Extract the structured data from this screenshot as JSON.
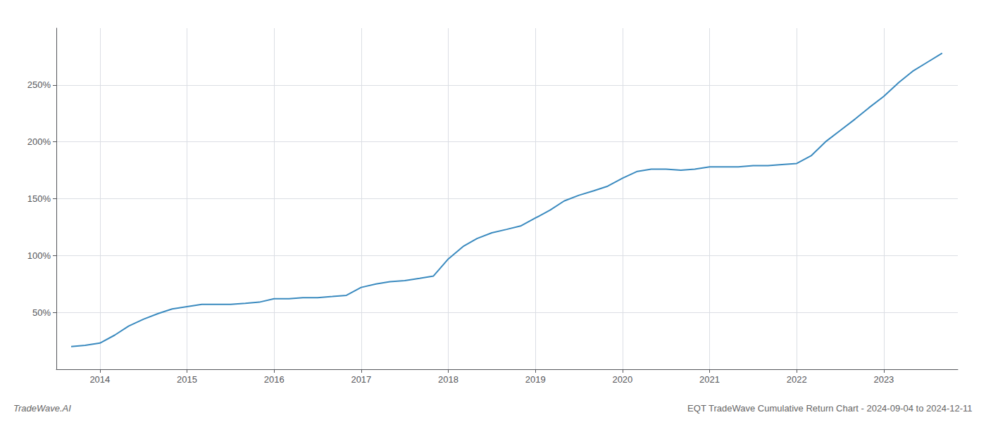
{
  "chart_data": {
    "type": "line",
    "title": "EQT TradeWave Cumulative Return Chart - 2024-09-04 to 2024-12-11",
    "annotations": [
      "TradeWave.AI"
    ],
    "color": "#3a8abf",
    "x": [
      2013.67,
      2013.83,
      2014.0,
      2014.17,
      2014.33,
      2014.5,
      2014.67,
      2014.83,
      2015.0,
      2015.17,
      2015.33,
      2015.5,
      2015.67,
      2015.83,
      2016.0,
      2016.17,
      2016.33,
      2016.5,
      2016.67,
      2016.83,
      2017.0,
      2017.17,
      2017.33,
      2017.5,
      2017.67,
      2017.83,
      2018.0,
      2018.17,
      2018.33,
      2018.5,
      2018.67,
      2018.83,
      2019.0,
      2019.17,
      2019.33,
      2019.5,
      2019.67,
      2019.83,
      2020.0,
      2020.17,
      2020.33,
      2020.5,
      2020.67,
      2020.83,
      2021.0,
      2021.17,
      2021.33,
      2021.5,
      2021.67,
      2021.83,
      2022.0,
      2022.17,
      2022.33,
      2022.5,
      2022.67,
      2022.83,
      2023.0,
      2023.17,
      2023.33,
      2023.5,
      2023.67
    ],
    "values": [
      20,
      21,
      23,
      30,
      38,
      44,
      49,
      53,
      55,
      57,
      57,
      57,
      58,
      59,
      62,
      62,
      63,
      63,
      64,
      65,
      72,
      75,
      77,
      78,
      80,
      82,
      97,
      108,
      115,
      120,
      123,
      126,
      133,
      140,
      148,
      153,
      157,
      161,
      168,
      174,
      176,
      176,
      175,
      176,
      178,
      178,
      178,
      179,
      179,
      180,
      181,
      188,
      200,
      210,
      220,
      230,
      240,
      252,
      262,
      270,
      278
    ],
    "xlim": [
      2013.5,
      2023.85
    ],
    "ylim": [
      0,
      300
    ],
    "xticks": [
      2014,
      2015,
      2016,
      2017,
      2018,
      2019,
      2020,
      2021,
      2022,
      2023
    ],
    "yticks": [
      {
        "value": 50,
        "label": "50%"
      },
      {
        "value": 100,
        "label": "100%"
      },
      {
        "value": 150,
        "label": "150%"
      },
      {
        "value": 200,
        "label": "200%"
      },
      {
        "value": 250,
        "label": "250%"
      }
    ],
    "grid": true
  }
}
